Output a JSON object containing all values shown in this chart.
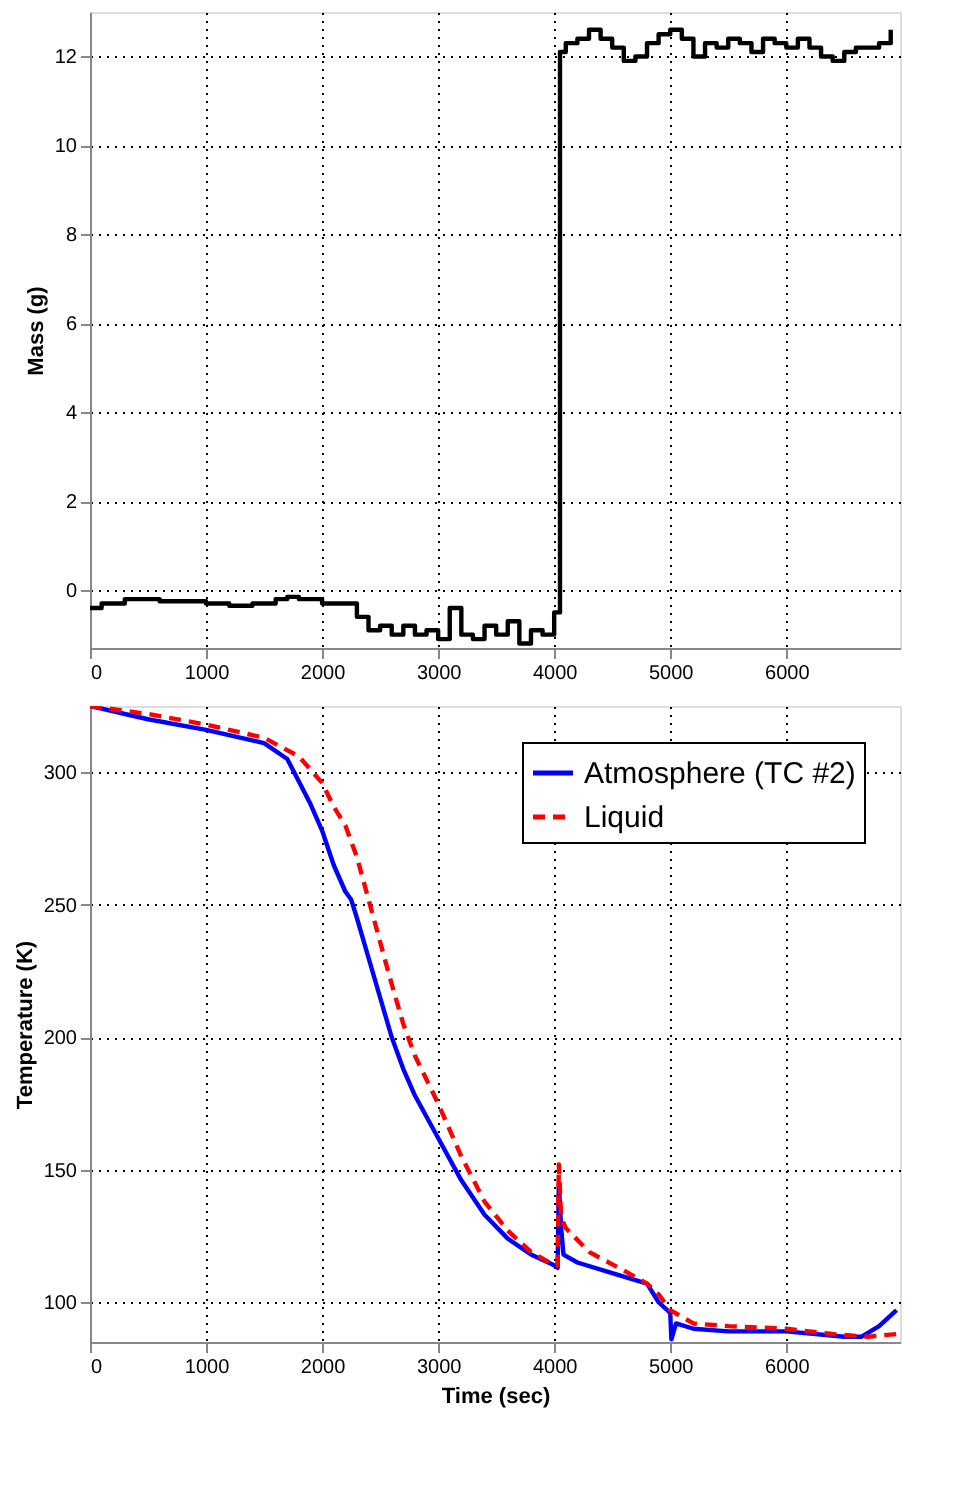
{
  "chart_data": [
    {
      "type": "step",
      "ylabel": "Mass (g)",
      "xlim": [
        0,
        6980
      ],
      "ylim": [
        -1.3,
        13
      ],
      "xticks": [
        0,
        1000,
        2000,
        3000,
        4000,
        5000,
        6000
      ],
      "yticks": [
        0,
        2,
        4,
        6,
        8,
        10,
        12
      ],
      "grid": true,
      "x": [
        0,
        100,
        200,
        300,
        400,
        600,
        800,
        1000,
        1200,
        1400,
        1600,
        1700,
        1800,
        2000,
        2200,
        2300,
        2400,
        2500,
        2600,
        2700,
        2800,
        2900,
        3000,
        3100,
        3200,
        3300,
        3400,
        3500,
        3600,
        3700,
        3800,
        3900,
        4000,
        4050,
        4100,
        4200,
        4300,
        4400,
        4500,
        4600,
        4700,
        4800,
        4900,
        5000,
        5100,
        5200,
        5300,
        5400,
        5500,
        5600,
        5700,
        5800,
        5900,
        6000,
        6100,
        6200,
        6300,
        6400,
        6500,
        6600,
        6700,
        6800,
        6900
      ],
      "series": [
        {
          "color": "#000000",
          "values": [
            -0.4,
            -0.3,
            -0.3,
            -0.2,
            -0.2,
            -0.25,
            -0.25,
            -0.3,
            -0.35,
            -0.3,
            -0.2,
            -0.15,
            -0.2,
            -0.3,
            -0.3,
            -0.6,
            -0.9,
            -0.8,
            -1.0,
            -0.8,
            -1.0,
            -0.9,
            -1.1,
            -0.4,
            -1.0,
            -1.1,
            -0.8,
            -1.0,
            -0.7,
            -1.2,
            -0.9,
            -1.0,
            -0.5,
            12.1,
            12.3,
            12.4,
            12.6,
            12.4,
            12.2,
            11.9,
            12.0,
            12.3,
            12.5,
            12.6,
            12.4,
            12.0,
            12.3,
            12.2,
            12.4,
            12.3,
            12.1,
            12.4,
            12.3,
            12.2,
            12.4,
            12.2,
            12.0,
            11.9,
            12.1,
            12.2,
            12.2,
            12.3,
            12.6
          ]
        }
      ]
    },
    {
      "type": "line",
      "xlabel": "Time (sec)",
      "ylabel": "Temperature (K)",
      "xlim": [
        0,
        6980
      ],
      "ylim": [
        85,
        325
      ],
      "xticks": [
        0,
        1000,
        2000,
        3000,
        4000,
        5000,
        6000
      ],
      "yticks": [
        100,
        150,
        200,
        250,
        300
      ],
      "grid": true,
      "legend": "top right",
      "series": [
        {
          "name": "Atmosphere (TC #2)",
          "color": "#0000ff",
          "line_style": "solid",
          "x": [
            0,
            500,
            1000,
            1500,
            1700,
            1900,
            2000,
            2100,
            2200,
            2250,
            2300,
            2400,
            2500,
            2600,
            2700,
            2800,
            3000,
            3200,
            3400,
            3600,
            3800,
            4000,
            4030,
            4040,
            4060,
            4080,
            4200,
            4500,
            4800,
            4900,
            5000,
            5010,
            5050,
            5200,
            5500,
            6000,
            6500,
            6650,
            6800,
            6950
          ],
          "values": [
            325,
            320,
            316,
            311,
            305,
            288,
            278,
            265,
            255,
            252,
            245,
            230,
            215,
            200,
            188,
            178,
            162,
            146,
            133,
            124,
            118,
            114,
            113,
            145,
            128,
            118,
            115,
            111,
            107,
            100,
            96,
            86,
            92,
            90,
            89,
            89,
            87,
            87,
            91,
            97
          ]
        },
        {
          "name": "Liquid",
          "color": "#ff0000",
          "line_style": "dashed",
          "x": [
            0,
            500,
            1000,
            1500,
            1800,
            2000,
            2100,
            2200,
            2300,
            2400,
            2500,
            2600,
            2700,
            2800,
            3000,
            3200,
            3400,
            3600,
            3800,
            4000,
            4030,
            4040,
            4060,
            4100,
            4300,
            4600,
            4800,
            4900,
            5000,
            5200,
            5500,
            6000,
            6400,
            6700,
            6950
          ],
          "values": [
            325,
            322,
            318,
            313,
            306,
            296,
            287,
            280,
            268,
            252,
            236,
            220,
            205,
            193,
            175,
            155,
            138,
            127,
            119,
            114,
            114,
            152,
            132,
            128,
            119,
            112,
            107,
            103,
            97,
            92,
            91,
            90,
            88,
            87,
            88
          ]
        }
      ]
    }
  ]
}
